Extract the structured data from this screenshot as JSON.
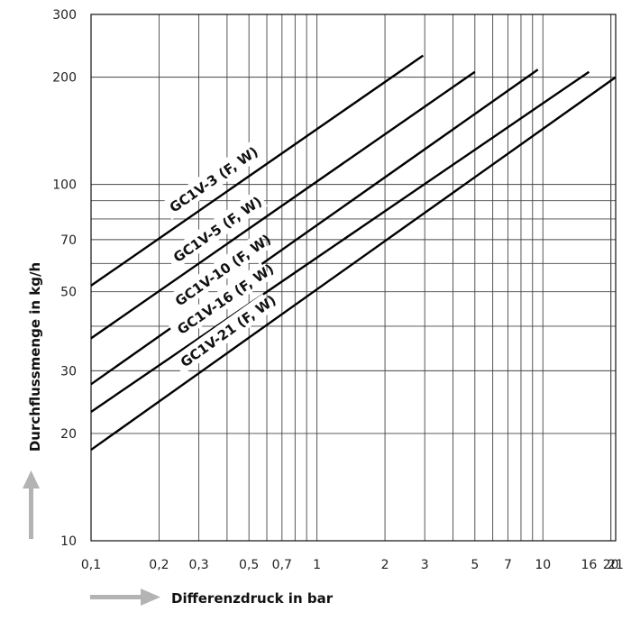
{
  "chart_data": {
    "type": "line",
    "title": "",
    "xlabel": "Differenzdruck in bar",
    "ylabel": "Durchflussmenge in kg/h",
    "x_scale": "log",
    "y_scale": "log",
    "xlim": [
      0.1,
      21
    ],
    "ylim": [
      10,
      300
    ],
    "grid": true,
    "x_ticks": [
      "0,1",
      "0,2",
      "0,3",
      "0,5",
      "0,7",
      "1",
      "2",
      "3",
      "5",
      "7",
      "10",
      "16",
      "20",
      "21"
    ],
    "y_ticks": [
      "10",
      "20",
      "30",
      "50",
      "70",
      "100",
      "200",
      "300"
    ],
    "series": [
      {
        "name": "GC1V-3 (F, W)",
        "x": [
          0.1,
          2.95
        ],
        "y": [
          52,
          230
        ]
      },
      {
        "name": "GC1V-5 (F, W)",
        "x": [
          0.1,
          5.0
        ],
        "y": [
          37,
          207
        ]
      },
      {
        "name": "GC1V-10 (F, W)",
        "x": [
          0.1,
          9.5
        ],
        "y": [
          27.5,
          210
        ]
      },
      {
        "name": "GC1V-16 (F, W)",
        "x": [
          0.1,
          16.0
        ],
        "y": [
          23,
          207
        ]
      },
      {
        "name": "GC1V-21 (F, W)",
        "x": [
          0.1,
          21.0
        ],
        "y": [
          18,
          200
        ]
      }
    ]
  }
}
